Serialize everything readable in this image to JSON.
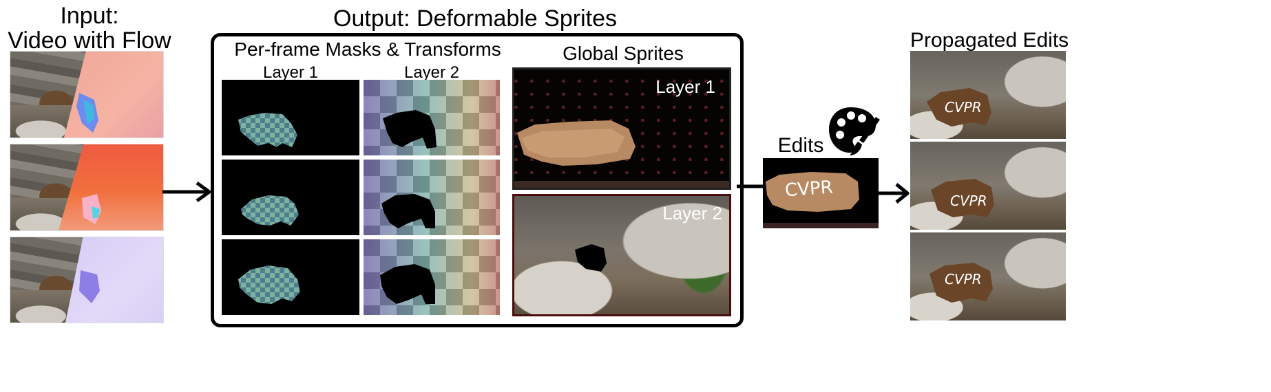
{
  "input": {
    "title": "Input:",
    "subtitle": "Video with Flow"
  },
  "output": {
    "title": "Output: Deformable Sprites",
    "masks_title": "Per-frame Masks & Transforms",
    "layer1_col": "Layer 1",
    "layer2_col": "Layer 2",
    "sprites_title": "Global Sprites",
    "sprite1_label": "Layer 1",
    "sprite2_label": "Layer 2"
  },
  "edits": {
    "label": "Edits",
    "text": "CVPR",
    "icon": "palette-brush-icon"
  },
  "propagated": {
    "title": "Propagated Edits",
    "text": "CVPR"
  }
}
